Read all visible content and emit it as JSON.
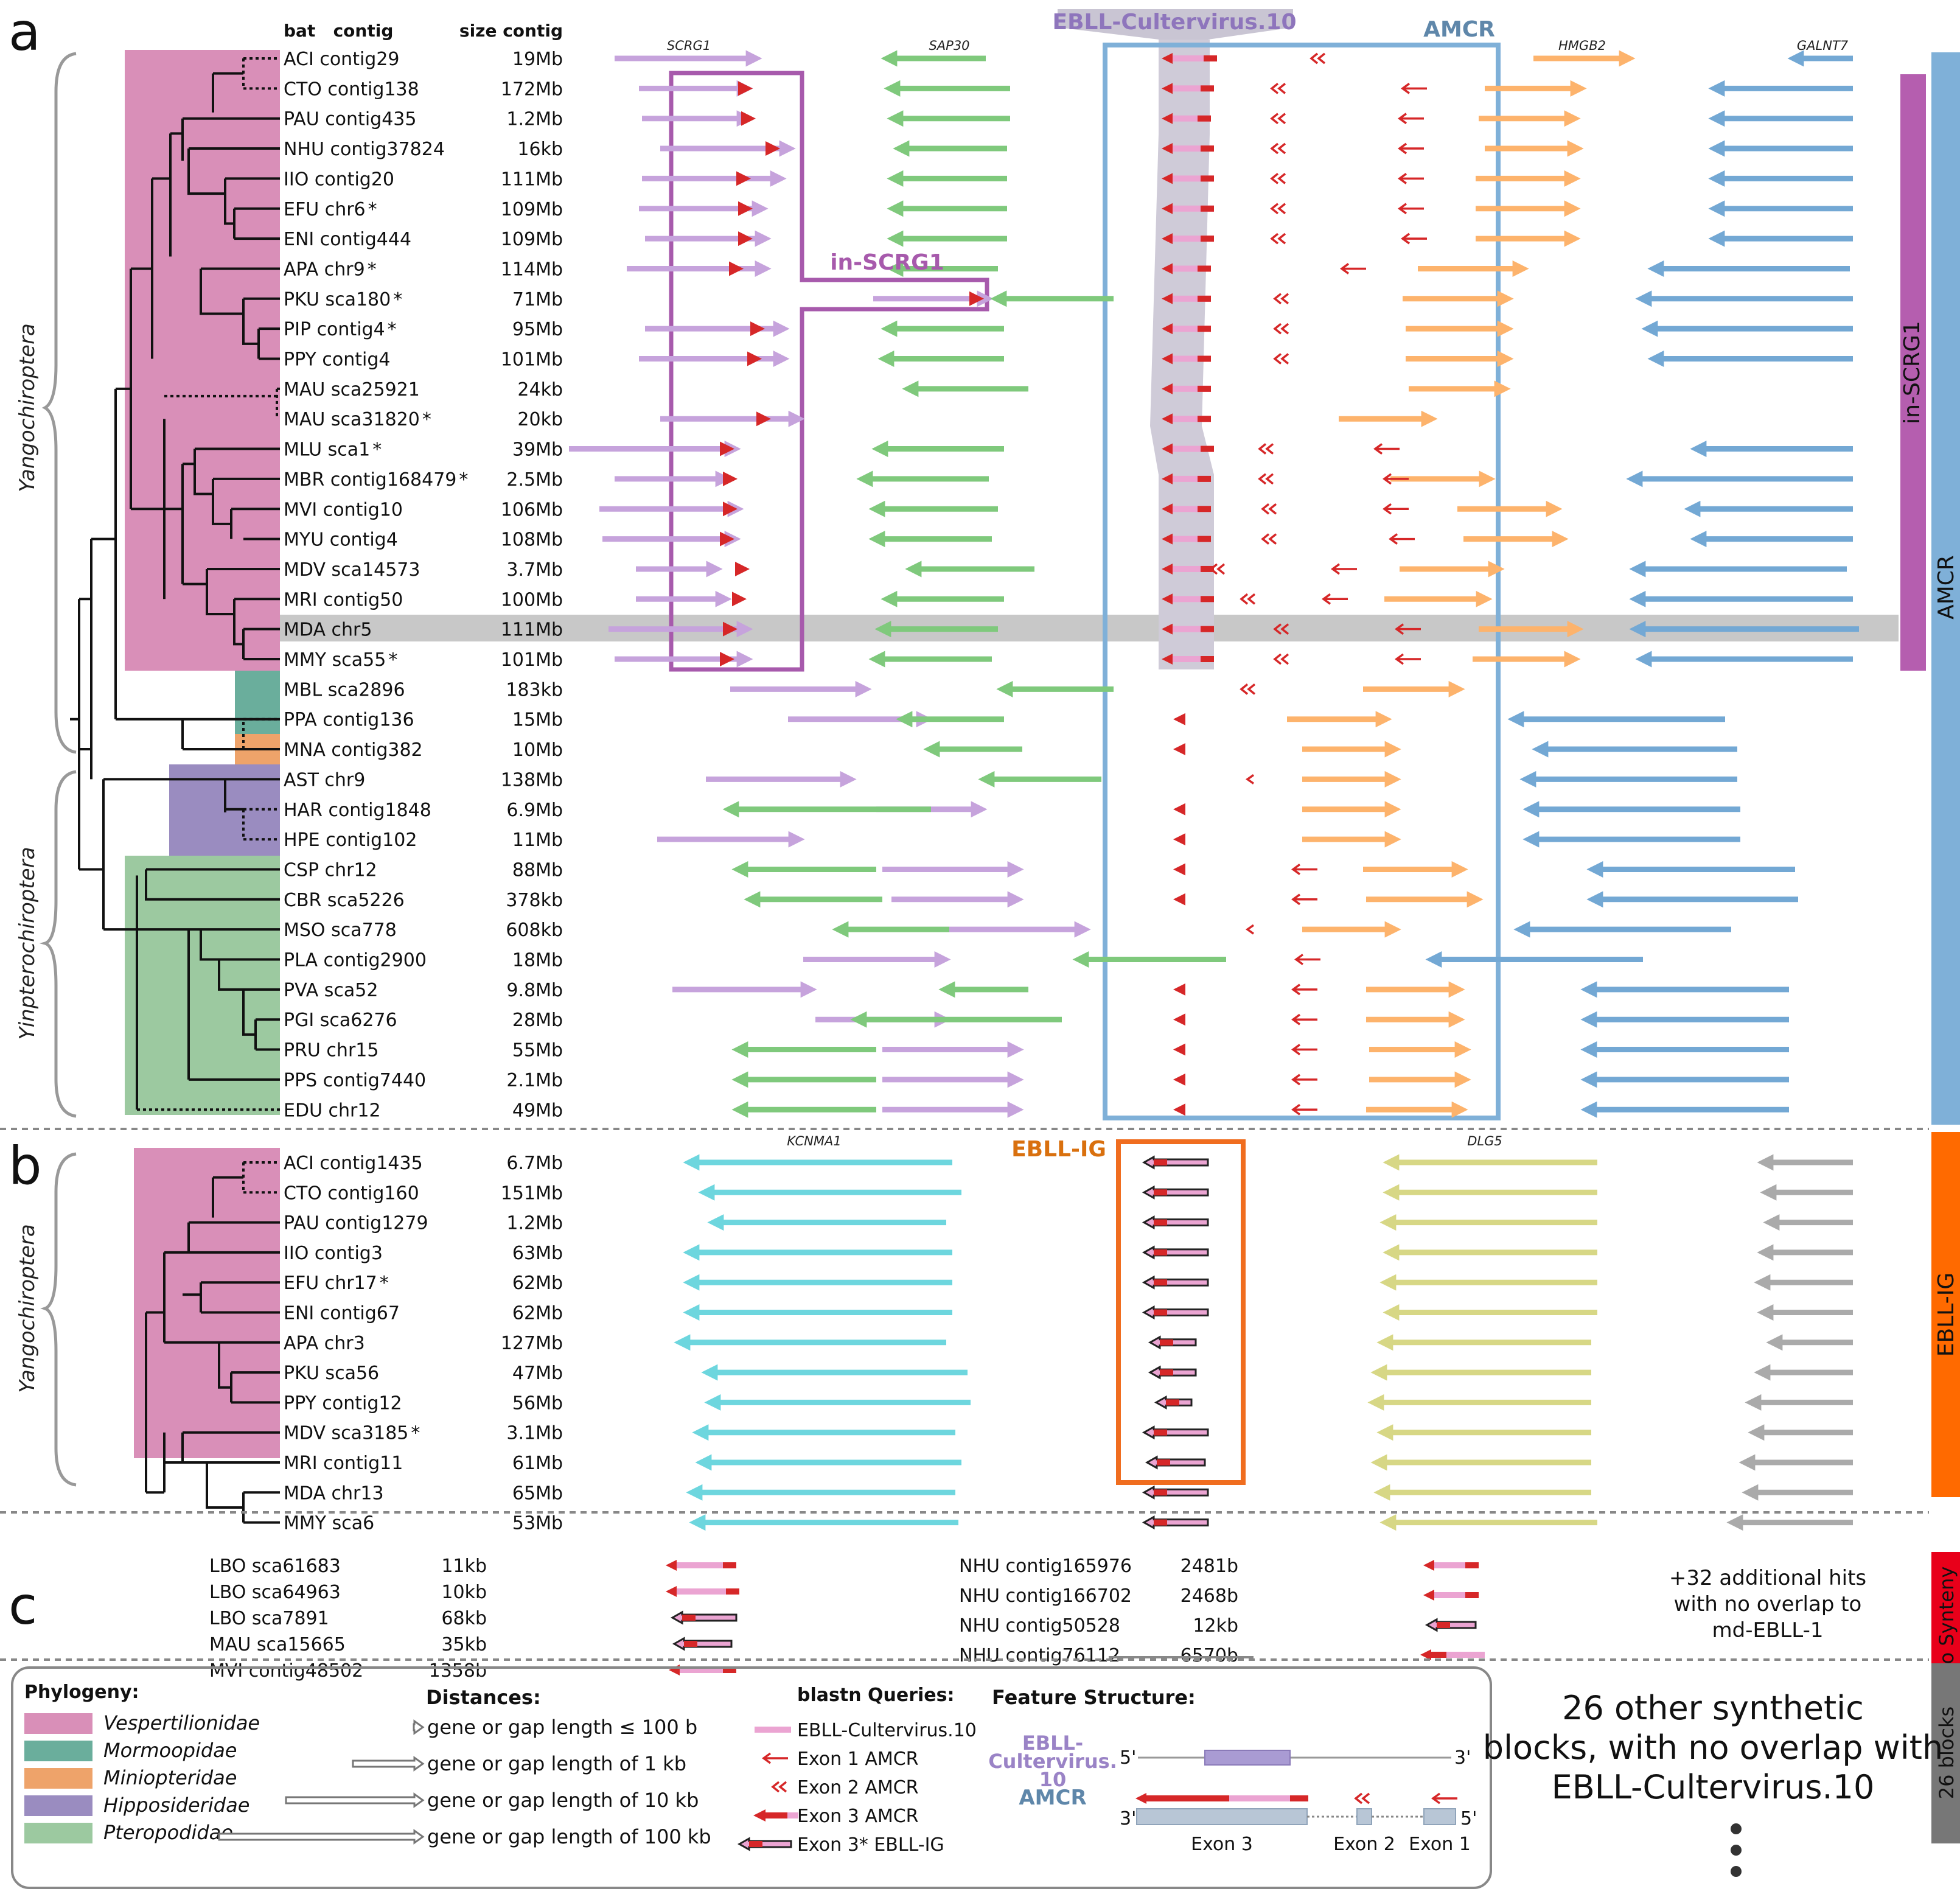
{
  "panels": {
    "a": "a",
    "b": "b",
    "c": "c"
  },
  "header": {
    "bat_contig": "bat   contig",
    "size_contig": "size contig"
  },
  "genes": {
    "scrg1": "SCRG1",
    "sap30": "SAP30",
    "hmgb2": "HMGB2",
    "galnt7": "GALNT7",
    "kcnma1": "KCNMA1",
    "dlg5": "DLG5"
  },
  "box_labels": {
    "ebll_cultervirus": "EBLL-Cultervirus.10",
    "amcr": "AMCR",
    "in_scrg1": "in-SCRG1",
    "ebll_ig": "EBLL-IG"
  },
  "side_bars": {
    "in_scrg1": "in-SCRG1",
    "amcr": "AMCR",
    "ebll_ig": "EBLL-IG",
    "no_synteny": "No Synteny",
    "blocks": "26 blocks"
  },
  "clades": {
    "a_yango": "Yangochiroptera",
    "a_yinp": "Yinpterochiroptera",
    "b_yango": "Yangochiroptera"
  },
  "colors": {
    "vesp": "#d98fb8",
    "mormo": "#6aae9c",
    "minio": "#eea36a",
    "hippo": "#9a8cc0",
    "ptero": "#9cc9a0",
    "scrg1": "#c6a3dc",
    "sap30": "#7fc97c",
    "hmgb2": "#fdb36c",
    "galnt7": "#73a8d4",
    "red": "#d62728",
    "pink": "#eba4d2",
    "kcnma1": "#6dd6de",
    "dlg5": "#d7d785",
    "grey": "#aaaaaa",
    "amcr_box": "#7fb0d8",
    "scrg_box": "#a75aac",
    "ig_box": "#f06d1f"
  },
  "rows_a": [
    {
      "name": "ACI contig29",
      "size": "19Mb"
    },
    {
      "name": "CTO contig138",
      "size": "172Mb"
    },
    {
      "name": "PAU contig435",
      "size": "1.2Mb"
    },
    {
      "name": "NHU contig37824",
      "size": "16kb"
    },
    {
      "name": "IIO contig20",
      "size": "111Mb"
    },
    {
      "name": "EFU chr6",
      "star": "*",
      "size": "109Mb"
    },
    {
      "name": "ENI contig444",
      "size": "109Mb"
    },
    {
      "name": "APA chr9",
      "star": "*",
      "size": "114Mb"
    },
    {
      "name": "PKU sca180",
      "star": "*",
      "size": "71Mb"
    },
    {
      "name": "PIP contig4",
      "star": "*",
      "size": "95Mb"
    },
    {
      "name": "PPY contig4",
      "size": "101Mb"
    },
    {
      "name": "MAU sca25921",
      "size": "24kb"
    },
    {
      "name": "MAU sca31820",
      "star": "*",
      "size": "20kb"
    },
    {
      "name": "MLU sca1",
      "star": "*",
      "size": "39Mb"
    },
    {
      "name": "MBR contig168479",
      "star": "*",
      "size": "2.5Mb"
    },
    {
      "name": "MVI contig10",
      "size": "106Mb"
    },
    {
      "name": "MYU contig4",
      "size": "108Mb"
    },
    {
      "name": "MDV sca14573",
      "size": "3.7Mb"
    },
    {
      "name": "MRI contig50",
      "size": "100Mb"
    },
    {
      "name": "MDA chr5",
      "size": "111Mb"
    },
    {
      "name": "MMY sca55",
      "star": "*",
      "size": "101Mb"
    },
    {
      "name": "MBL sca2896",
      "size": "183kb"
    },
    {
      "name": "PPA contig136",
      "size": "15Mb"
    },
    {
      "name": "MNA contig382",
      "size": "10Mb"
    },
    {
      "name": "AST chr9",
      "size": "138Mb"
    },
    {
      "name": "HAR contig1848",
      "size": "6.9Mb"
    },
    {
      "name": "HPE contig102",
      "size": "11Mb"
    },
    {
      "name": "CSP chr12",
      "size": "88Mb"
    },
    {
      "name": "CBR sca5226",
      "size": "378kb"
    },
    {
      "name": "MSO sca778",
      "size": "608kb"
    },
    {
      "name": "PLA contig2900",
      "size": "18Mb"
    },
    {
      "name": "PVA sca52",
      "size": "9.8Mb"
    },
    {
      "name": "PGI sca6276",
      "size": "28Mb"
    },
    {
      "name": "PRU chr15",
      "size": "55Mb"
    },
    {
      "name": "PPS contig7440",
      "size": "2.1Mb"
    },
    {
      "name": "EDU chr12",
      "size": "49Mb"
    }
  ],
  "rows_b": [
    {
      "name": "ACI contig1435",
      "size": "6.7Mb"
    },
    {
      "name": "CTO contig160",
      "size": "151Mb"
    },
    {
      "name": "PAU contig1279",
      "size": "1.2Mb"
    },
    {
      "name": "IIO contig3",
      "size": "63Mb"
    },
    {
      "name": "EFU chr17",
      "star": "*",
      "size": "62Mb"
    },
    {
      "name": "ENI contig67",
      "size": "62Mb"
    },
    {
      "name": "APA chr3",
      "size": "127Mb"
    },
    {
      "name": "PKU sca56",
      "size": "47Mb"
    },
    {
      "name": "PPY contig12",
      "size": "56Mb"
    },
    {
      "name": "MDV sca3185",
      "star": "*",
      "size": "3.1Mb"
    },
    {
      "name": "MRI contig11",
      "size": "61Mb"
    },
    {
      "name": "MDA chr13",
      "size": "65Mb"
    },
    {
      "name": "MMY sca6",
      "size": "53Mb"
    }
  ],
  "rows_c_left": [
    {
      "name": "LBO sca61683",
      "size": "11kb"
    },
    {
      "name": "LBO sca64963",
      "size": "10kb"
    },
    {
      "name": "LBO sca7891",
      "size": "68kb"
    },
    {
      "name": "MAU sca15665",
      "size": "35kb"
    },
    {
      "name": "MVI contig48502",
      "size": "1358b"
    }
  ],
  "rows_c_right": [
    {
      "name": "NHU contig165976",
      "size": "2481b"
    },
    {
      "name": "NHU contig166702",
      "size": "2468b"
    },
    {
      "name": "NHU contig50528",
      "size": "12kb"
    },
    {
      "name": "NHU contig76112",
      "size": "6570b"
    }
  ],
  "c_note": [
    "+32 additional hits",
    "with no overlap to",
    "md-EBLL-1"
  ],
  "legend": {
    "phylo_title": "Phylogeny:",
    "families": [
      "Vespertilionidae",
      "Mormoopidae",
      "Miniopteridae",
      "Hipposideridae",
      "Pteropodidae"
    ],
    "dist_title": "Distances:",
    "distances": [
      "gene or gap length ≤ 100 b",
      "gene or gap length of 1 kb",
      "gene or gap length of 10 kb",
      "gene or gap length of 100 kb"
    ],
    "query_title": "blastn Queries:",
    "queries": [
      "EBLL-Cultervirus.10",
      "Exon 1 AMCR",
      "Exon 2 AMCR",
      "Exon 3 AMCR",
      "Exon 3* EBLL-IG"
    ],
    "feature_title": "Feature Structure:",
    "feat_ebll": [
      "EBLL-",
      "Cultervirus.",
      "10"
    ],
    "feat_amcr": "AMCR",
    "five_prime": "5'",
    "three_prime": "3'",
    "exons": [
      "Exon 3",
      "Exon 2",
      "Exon 1"
    ]
  },
  "other_blocks": [
    "26 other synthetic",
    "blocks, with no overlap with",
    "EBLL-Cultervirus.10"
  ]
}
